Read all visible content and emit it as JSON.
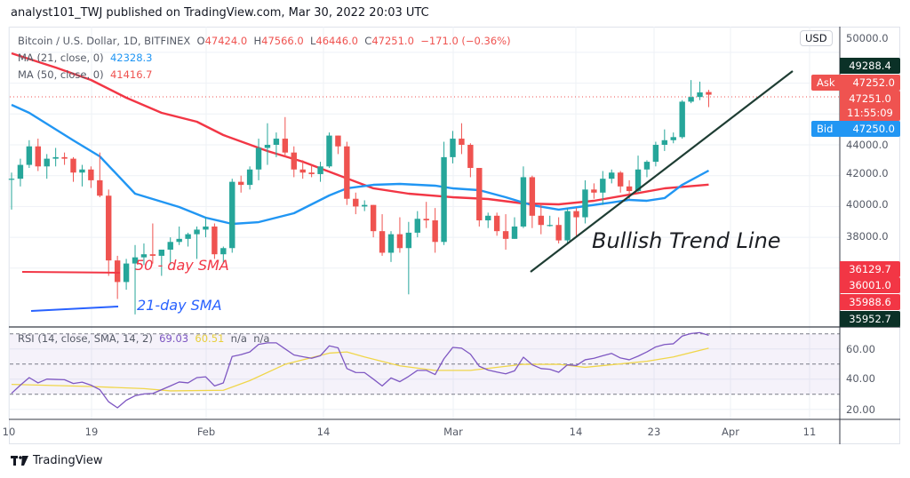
{
  "header": {
    "publish_line": "analyst101_TWJ published on TradingView.com, Mar 30, 2022 20:03 UTC"
  },
  "legend": {
    "symbol": "Bitcoin / U.S. Dollar, 1D, BITFINEX",
    "o_label": "O",
    "o": "47424.0",
    "h_label": "H",
    "h": "47566.0",
    "l_label": "L",
    "l": "46446.0",
    "c_label": "C",
    "c": "47251.0",
    "change": "−171.0",
    "change_pct": "(−0.36%)",
    "ma21_label": "MA (21, close, 0)",
    "ma21_value": "42328.3",
    "ma50_label": "MA (50, close, 0)",
    "ma50_value": "41416.7"
  },
  "price_axis": {
    "currency": "USD",
    "top_label": "50000.0",
    "ticks": [
      "44000.0",
      "42000.0",
      "40000.0",
      "38000.0"
    ],
    "high_label": "49288.4",
    "ask_label": "Ask",
    "ask": "47252.0",
    "last": "47251.0",
    "countdown": "11:55:09",
    "bid_label": "Bid",
    "bid": "47250.0",
    "stack": [
      "36129.7",
      "36001.0",
      "35988.6"
    ],
    "low_label": "35952.7"
  },
  "rsi": {
    "legend": "RSI (14, close, SMA, 14, 2)",
    "rsi_value": "69.03",
    "sma_value": "60.51",
    "na1": "n/a",
    "na2": "n/a",
    "ticks": [
      "60.00",
      "40.00",
      "20.00"
    ]
  },
  "time_axis": {
    "ticks": [
      "10",
      "19",
      "Feb",
      "14",
      "Mar",
      "14",
      "23",
      "Apr",
      "11"
    ]
  },
  "annotations": {
    "sma50": "50 - day SMA",
    "sma21": "21-day SMA",
    "trend": "Bullish Trend Line"
  },
  "footer": {
    "brand": "TradingView"
  },
  "colors": {
    "up": "#26a69a",
    "down": "#ef5350",
    "ma21": "#2196f3",
    "ma50": "#f23645",
    "rsi": "#7e57c2",
    "rsi_sma": "#f0d64a",
    "trend_line": "#1e3d33",
    "bid": "#2196f3",
    "high_low_box": "#0b3127"
  },
  "chart_data": {
    "type": "candlestick",
    "symbol": "Bitcoin / U.S. Dollar, 1D, BITFINEX",
    "ylim": [
      35500,
      51500
    ],
    "candles": [
      [
        "2022-01-10",
        41800,
        42200,
        39800,
        41800
      ],
      [
        "2022-01-11",
        41800,
        43100,
        41300,
        42700
      ],
      [
        "2022-01-12",
        42700,
        44300,
        42500,
        43900
      ],
      [
        "2022-01-13",
        43900,
        44400,
        42300,
        42600
      ],
      [
        "2022-01-14",
        42600,
        43400,
        41800,
        43100
      ],
      [
        "2022-01-15",
        43100,
        43800,
        42600,
        43200
      ],
      [
        "2022-01-16",
        43200,
        43500,
        42700,
        43100
      ],
      [
        "2022-01-17",
        43100,
        43200,
        41600,
        42200
      ],
      [
        "2022-01-18",
        42200,
        42700,
        41300,
        42400
      ],
      [
        "2022-01-19",
        42400,
        42600,
        41200,
        41700
      ],
      [
        "2022-01-20",
        41700,
        43500,
        40600,
        40700
      ],
      [
        "2022-01-21",
        40700,
        41100,
        35500,
        36500
      ],
      [
        "2022-01-22",
        36500,
        36800,
        34000,
        35100
      ],
      [
        "2022-01-23",
        35100,
        36600,
        34600,
        36300
      ],
      [
        "2022-01-24",
        36300,
        37500,
        33000,
        36700
      ],
      [
        "2022-01-25",
        36700,
        37600,
        36200,
        36900
      ],
      [
        "2022-01-26",
        36900,
        38900,
        36300,
        36800
      ],
      [
        "2022-01-27",
        36800,
        37200,
        35500,
        37200
      ],
      [
        "2022-01-28",
        37200,
        38000,
        36200,
        37700
      ],
      [
        "2022-01-29",
        37700,
        38700,
        37500,
        37900
      ],
      [
        "2022-01-30",
        37900,
        38300,
        37400,
        38200
      ],
      [
        "2022-01-31",
        38200,
        38700,
        36600,
        38500
      ],
      [
        "2022-02-01",
        38500,
        39300,
        38000,
        38700
      ],
      [
        "2022-02-02",
        38700,
        38900,
        36600,
        36900
      ],
      [
        "2022-02-03",
        36900,
        37400,
        36300,
        37300
      ],
      [
        "2022-02-04",
        37300,
        41800,
        37000,
        41600
      ],
      [
        "2022-02-05",
        41600,
        42000,
        40900,
        41400
      ],
      [
        "2022-02-06",
        41400,
        42600,
        41100,
        42400
      ],
      [
        "2022-02-07",
        42400,
        44400,
        41700,
        43800
      ],
      [
        "2022-02-08",
        43800,
        45400,
        42700,
        44000
      ],
      [
        "2022-02-09",
        44000,
        44800,
        43200,
        44400
      ],
      [
        "2022-02-10",
        44400,
        45800,
        43200,
        43500
      ],
      [
        "2022-02-11",
        43500,
        43900,
        41900,
        42400
      ],
      [
        "2022-02-12",
        42400,
        43000,
        41800,
        42200
      ],
      [
        "2022-02-13",
        42200,
        42700,
        41900,
        42100
      ],
      [
        "2022-02-14",
        42100,
        42900,
        41600,
        42600
      ],
      [
        "2022-02-15",
        42600,
        44800,
        42500,
        44600
      ],
      [
        "2022-02-16",
        44600,
        44600,
        43400,
        43900
      ],
      [
        "2022-02-17",
        43900,
        44200,
        40100,
        40500
      ],
      [
        "2022-02-18",
        40500,
        40900,
        39500,
        40000
      ],
      [
        "2022-02-19",
        40000,
        40400,
        39700,
        40100
      ],
      [
        "2022-02-20",
        40100,
        40100,
        38000,
        38400
      ],
      [
        "2022-02-21",
        38400,
        39500,
        36800,
        37000
      ],
      [
        "2022-02-22",
        37000,
        38400,
        36400,
        38200
      ],
      [
        "2022-02-23",
        38200,
        39300,
        37000,
        37300
      ],
      [
        "2022-02-24",
        37300,
        39000,
        34300,
        38300
      ],
      [
        "2022-02-25",
        38300,
        39700,
        38000,
        39200
      ],
      [
        "2022-02-26",
        39200,
        40300,
        38600,
        39100
      ],
      [
        "2022-02-27",
        39100,
        39900,
        37000,
        37700
      ],
      [
        "2022-02-28",
        37700,
        44200,
        37500,
        43200
      ],
      [
        "2022-03-01",
        43200,
        44900,
        42800,
        44400
      ],
      [
        "2022-03-02",
        44400,
        45400,
        43400,
        44000
      ],
      [
        "2022-03-03",
        44000,
        44100,
        41900,
        42500
      ],
      [
        "2022-03-04",
        42500,
        42500,
        38700,
        39100
      ],
      [
        "2022-03-05",
        39100,
        39600,
        38600,
        39400
      ],
      [
        "2022-03-06",
        39400,
        39600,
        38100,
        38400
      ],
      [
        "2022-03-07",
        38400,
        39500,
        37200,
        37900
      ],
      [
        "2022-03-08",
        37900,
        39300,
        37900,
        38700
      ],
      [
        "2022-03-09",
        38700,
        42600,
        38600,
        41900
      ],
      [
        "2022-03-10",
        41900,
        42000,
        38600,
        39400
      ],
      [
        "2022-03-11",
        39400,
        40200,
        38200,
        38800
      ],
      [
        "2022-03-12",
        38800,
        39400,
        38700,
        38800
      ],
      [
        "2022-03-13",
        38800,
        39300,
        37600,
        37800
      ],
      [
        "2022-03-14",
        37800,
        39900,
        37600,
        39700
      ],
      [
        "2022-03-15",
        39700,
        39900,
        38100,
        39300
      ],
      [
        "2022-03-16",
        39300,
        41700,
        38900,
        41100
      ],
      [
        "2022-03-17",
        41100,
        41500,
        40500,
        40900
      ],
      [
        "2022-03-18",
        40900,
        42300,
        40100,
        41800
      ],
      [
        "2022-03-19",
        41800,
        42400,
        41500,
        42200
      ],
      [
        "2022-03-20",
        42200,
        42300,
        40900,
        41300
      ],
      [
        "2022-03-21",
        41300,
        41700,
        40500,
        41000
      ],
      [
        "2022-03-22",
        41000,
        43300,
        40900,
        42400
      ],
      [
        "2022-03-23",
        42400,
        43000,
        41900,
        42900
      ],
      [
        "2022-03-24",
        42900,
        44200,
        42600,
        44000
      ],
      [
        "2022-03-25",
        44000,
        45000,
        43600,
        44300
      ],
      [
        "2022-03-26",
        44300,
        44800,
        44100,
        44500
      ],
      [
        "2022-03-27",
        44500,
        46900,
        44400,
        46800
      ],
      [
        "2022-03-28",
        46800,
        48200,
        46700,
        47100
      ],
      [
        "2022-03-29",
        47100,
        48100,
        46900,
        47400
      ],
      [
        "2022-03-30",
        47424,
        47566,
        46446,
        47251
      ]
    ],
    "candle_fields": [
      "date",
      "open",
      "high",
      "low",
      "close"
    ],
    "ma21": [
      [
        "2022-01-10",
        46594
      ],
      [
        "2022-01-12",
        46075
      ],
      [
        "2022-01-17",
        44288
      ],
      [
        "2022-01-20",
        43251
      ],
      [
        "2022-01-24",
        40830
      ],
      [
        "2022-01-29",
        39965
      ],
      [
        "2022-02-01",
        39274
      ],
      [
        "2022-02-04",
        38870
      ],
      [
        "2022-02-07",
        38985
      ],
      [
        "2022-02-11",
        39562
      ],
      [
        "2022-02-15",
        40715
      ],
      [
        "2022-02-17",
        41176
      ],
      [
        "2022-02-20",
        41406
      ],
      [
        "2022-02-23",
        41464
      ],
      [
        "2022-02-27",
        41349
      ],
      [
        "2022-03-01",
        41176
      ],
      [
        "2022-03-04",
        41060
      ],
      [
        "2022-03-07",
        40599
      ],
      [
        "2022-03-10",
        40081
      ],
      [
        "2022-03-13",
        39793
      ],
      [
        "2022-03-16",
        40023
      ],
      [
        "2022-03-19",
        40254
      ],
      [
        "2022-03-21",
        40427
      ],
      [
        "2022-03-23",
        40369
      ],
      [
        "2022-03-25",
        40542
      ],
      [
        "2022-03-27",
        41406
      ],
      [
        "2022-03-30",
        42328.3
      ]
    ],
    "ma50": [
      [
        "2022-01-10",
        49937
      ],
      [
        "2022-01-15",
        49014
      ],
      [
        "2022-01-19",
        48207
      ],
      [
        "2022-01-23",
        47055
      ],
      [
        "2022-01-27",
        46075
      ],
      [
        "2022-01-31",
        45499
      ],
      [
        "2022-02-03",
        44634
      ],
      [
        "2022-02-08",
        43597
      ],
      [
        "2022-02-12",
        42905
      ],
      [
        "2022-02-16",
        42040
      ],
      [
        "2022-02-20",
        41176
      ],
      [
        "2022-02-24",
        40830
      ],
      [
        "2022-03-01",
        40599
      ],
      [
        "2022-03-05",
        40484
      ],
      [
        "2022-03-09",
        40196
      ],
      [
        "2022-03-13",
        40138
      ],
      [
        "2022-03-17",
        40369
      ],
      [
        "2022-03-21",
        40772
      ],
      [
        "2022-03-25",
        41176
      ],
      [
        "2022-03-30",
        41416.7
      ]
    ],
    "rsi": [
      30.6,
      36,
      41,
      37.5,
      40,
      39.8,
      39.6,
      37.1,
      38,
      36,
      33,
      25,
      21,
      26,
      29,
      30.2,
      30.5,
      33,
      35.5,
      38.1,
      37.5,
      41,
      41.5,
      35.5,
      37.5,
      55,
      56.2,
      58,
      63,
      64,
      64,
      60,
      56,
      54.8,
      53.8,
      55.5,
      62,
      60.7,
      47,
      44.4,
      44.3,
      40,
      35.5,
      40.8,
      38.3,
      41.8,
      45.8,
      45.8,
      43,
      53.5,
      61,
      60.5,
      56.5,
      48.5,
      46,
      44.7,
      43.5,
      45.5,
      54.5,
      49.5,
      47,
      46.5,
      44.5,
      49.5,
      49,
      52.8,
      53.8,
      55.5,
      57,
      54,
      52.8,
      55.2,
      58,
      61.3,
      62.9,
      63.4,
      68.5,
      70.2,
      70.8,
      69.03
    ],
    "rsi_sma": [
      [
        "2022-01-10",
        36.5
      ],
      [
        "2022-01-19",
        35.1
      ],
      [
        "2022-01-25",
        33.7
      ],
      [
        "2022-01-28",
        32.2
      ],
      [
        "2022-02-03",
        32.6
      ],
      [
        "2022-02-06",
        39
      ],
      [
        "2022-02-10",
        49.8
      ],
      [
        "2022-02-15",
        57.2
      ],
      [
        "2022-02-17",
        58
      ],
      [
        "2022-02-19",
        54.7
      ],
      [
        "2022-02-23",
        48.8
      ],
      [
        "2022-02-27",
        45.8
      ],
      [
        "2022-03-03",
        45.8
      ],
      [
        "2022-03-09",
        49.8
      ],
      [
        "2022-03-13",
        49.8
      ],
      [
        "2022-03-16",
        47.8
      ],
      [
        "2022-03-23",
        51.8
      ],
      [
        "2022-03-26",
        54.7
      ],
      [
        "2022-03-30",
        60.51
      ]
    ],
    "rsi_levels": [
      70,
      50,
      30
    ],
    "rsi_ylim": [
      15,
      75
    ]
  }
}
